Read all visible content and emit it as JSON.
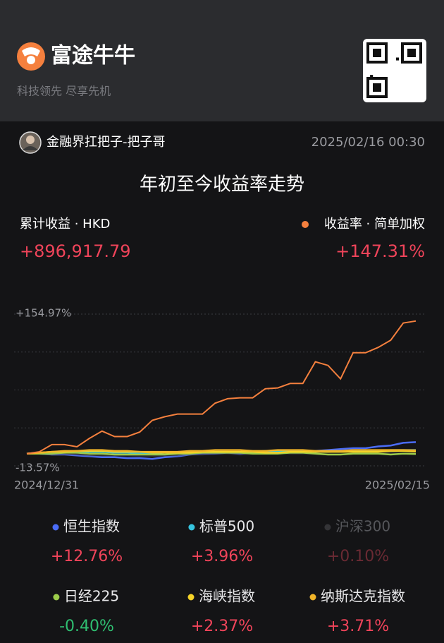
{
  "header": {
    "brand": "富途牛牛",
    "slogan": "科技领先 尽享先机"
  },
  "post": {
    "user": "金融界扛把子-把子哥",
    "time": "2025/02/16 00:30"
  },
  "summary": {
    "profit_label": "累计收益 · HKD",
    "profit": "+896,917.79"
  },
  "chart_data": {
    "type": "line",
    "title": "年初至今收益率走势",
    "categories": [
      "2024/12/31",
      null,
      null,
      null,
      null,
      null,
      null,
      null,
      null,
      null,
      null,
      null,
      null,
      null,
      null,
      null,
      null,
      null,
      null,
      null,
      null,
      null,
      null,
      null,
      null,
      null,
      null,
      null,
      null,
      null,
      null,
      "2025/02/15"
    ],
    "ylim": [
      -13.57,
      154.97
    ],
    "yticks": [
      {
        "value": 154.97,
        "label": "+154.97%"
      },
      {
        "value": -13.57,
        "label": "-13.57%"
      }
    ],
    "grid": true,
    "series": [
      {
        "name": "收益率 · 简单加权",
        "color": "#f5803e",
        "active": true,
        "total": 147.31,
        "total_label": "+147.31%",
        "values": [
          0,
          2,
          10,
          10,
          7.6,
          17,
          25,
          19,
          19,
          24,
          37,
          41,
          44,
          44,
          44,
          56,
          61,
          62,
          62,
          72,
          73,
          78,
          78,
          102,
          98,
          83,
          112,
          112,
          118,
          126,
          145,
          147.31
        ]
      },
      {
        "name": "恒生指数",
        "color": "#4a6cf7",
        "active": true,
        "total": 12.76,
        "total_label": "+12.76%",
        "values": [
          0,
          0,
          -1,
          -1,
          -2,
          -3,
          -4,
          -4,
          -5,
          -5,
          -6,
          -4,
          -3,
          -1,
          0,
          0,
          1,
          0,
          1,
          2,
          2,
          1,
          1,
          3,
          4,
          5,
          6,
          6,
          8,
          9,
          12,
          12.76
        ]
      },
      {
        "name": "标普500",
        "color": "#36c5e0",
        "active": true,
        "total": 3.96,
        "total_label": "+3.96%",
        "values": [
          0,
          1,
          1,
          2,
          1,
          2,
          2,
          1,
          1,
          0,
          0,
          1,
          1,
          2,
          2,
          2,
          2,
          1,
          2,
          3,
          3,
          3,
          3,
          2,
          2,
          3,
          3,
          3,
          3,
          4,
          4,
          3.96
        ]
      },
      {
        "name": "沪深300",
        "color": "#4a4a4e",
        "active": false,
        "total": 0.1,
        "total_label": "+0.10%",
        "values": [
          0,
          0,
          -1,
          -1,
          -1,
          -2,
          -2,
          -2,
          -2,
          -3,
          -3,
          -2,
          -2,
          -1,
          -1,
          0,
          0,
          -1,
          0,
          0,
          1,
          0,
          0,
          0,
          -1,
          -1,
          0,
          0,
          0,
          1,
          0,
          0.1
        ]
      },
      {
        "name": "日经225",
        "color": "#9ccc4a",
        "active": true,
        "total": -0.4,
        "total_label": "-0.40%",
        "values": [
          0,
          0,
          0,
          1,
          1,
          0,
          0,
          -1,
          -1,
          -1,
          -1,
          -1,
          0,
          0,
          1,
          1,
          1,
          1,
          0,
          0,
          0,
          1,
          1,
          0,
          -1,
          -1,
          0,
          0,
          0,
          -1,
          0,
          -0.4
        ]
      },
      {
        "name": "海峡指数",
        "color": "#f5d328",
        "active": true,
        "total": 2.37,
        "total_label": "+2.37%",
        "values": [
          0,
          1,
          2,
          2,
          3,
          3,
          3,
          2,
          2,
          2,
          1,
          1,
          1,
          1,
          2,
          2,
          2,
          2,
          2,
          1,
          1,
          2,
          2,
          2,
          2,
          2,
          2,
          2,
          2,
          3,
          3,
          2.37
        ]
      },
      {
        "name": "纳斯达克指数",
        "color": "#f0b429",
        "active": true,
        "total": 3.71,
        "total_label": "+3.71%",
        "values": [
          0,
          1,
          2,
          3,
          3,
          4,
          4,
          3,
          3,
          2,
          2,
          2,
          2,
          3,
          3,
          4,
          4,
          4,
          3,
          3,
          4,
          4,
          4,
          3,
          3,
          3,
          4,
          4,
          4,
          4,
          4,
          3.71
        ]
      }
    ]
  }
}
